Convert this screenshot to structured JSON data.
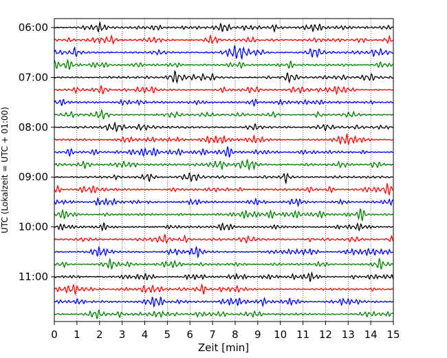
{
  "chart_data": {
    "type": "line",
    "title": "",
    "xlabel": "Zeit  [min]",
    "ylabel": "UTC (Lokalzeit = UTC + 01:00)",
    "xlim": [
      0,
      15
    ],
    "x_ticks": [
      "0",
      "1",
      "2",
      "3",
      "4",
      "5",
      "6",
      "7",
      "8",
      "9",
      "10",
      "11",
      "12",
      "13",
      "14",
      "15"
    ],
    "y_ticks": [
      "06:00",
      "07:00",
      "08:00",
      "09:00",
      "10:00",
      "11:00"
    ],
    "grid": "vertical dotted lines at every minute",
    "trace_interval_minutes": 15,
    "series": [
      {
        "start": "06:00",
        "color": "#000000"
      },
      {
        "start": "06:15",
        "color": "#ff0000"
      },
      {
        "start": "06:30",
        "color": "#0000ff"
      },
      {
        "start": "06:45",
        "color": "#008000"
      },
      {
        "start": "07:00",
        "color": "#000000"
      },
      {
        "start": "07:15",
        "color": "#ff0000"
      },
      {
        "start": "07:30",
        "color": "#0000ff"
      },
      {
        "start": "07:45",
        "color": "#008000"
      },
      {
        "start": "08:00",
        "color": "#000000"
      },
      {
        "start": "08:15",
        "color": "#ff0000"
      },
      {
        "start": "08:30",
        "color": "#0000ff"
      },
      {
        "start": "08:45",
        "color": "#008000"
      },
      {
        "start": "09:00",
        "color": "#000000"
      },
      {
        "start": "09:15",
        "color": "#ff0000"
      },
      {
        "start": "09:30",
        "color": "#0000ff"
      },
      {
        "start": "09:45",
        "color": "#008000"
      },
      {
        "start": "10:00",
        "color": "#000000"
      },
      {
        "start": "10:15",
        "color": "#ff0000"
      },
      {
        "start": "10:30",
        "color": "#0000ff"
      },
      {
        "start": "10:45",
        "color": "#008000"
      },
      {
        "start": "11:00",
        "color": "#000000"
      },
      {
        "start": "11:15",
        "color": "#ff0000"
      },
      {
        "start": "11:30",
        "color": "#0000ff"
      },
      {
        "start": "11:45",
        "color": "#008000"
      }
    ]
  }
}
